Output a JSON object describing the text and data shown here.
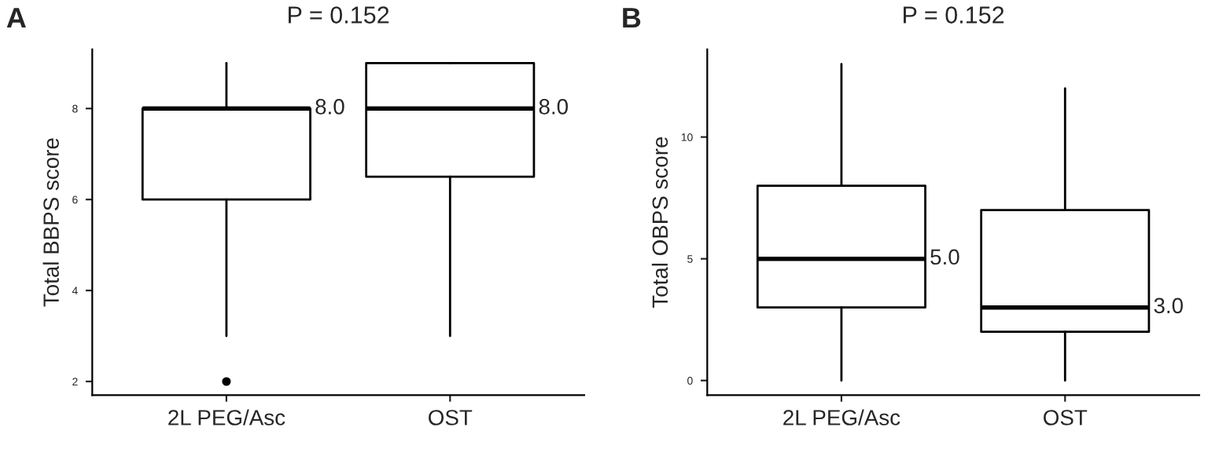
{
  "chart_data": [
    {
      "type": "box",
      "title": "P = 0.152",
      "ylabel": "Total BBPS score",
      "categories": [
        "2L PEG/Asc",
        "OST"
      ],
      "boxes": [
        {
          "low": 3,
          "q1": 6,
          "median": 8,
          "q3": 8,
          "high": 9,
          "outliers": [
            2
          ]
        },
        {
          "low": 3,
          "q1": 6.5,
          "median": 8,
          "q3": 9,
          "high": 9
        }
      ],
      "ylim": [
        1.7,
        9.3
      ],
      "yticks": [
        2,
        4,
        6,
        8
      ],
      "grid": false,
      "value_labels": [
        "8.0",
        "8.0"
      ],
      "annotations": [
        "A"
      ]
    },
    {
      "type": "box",
      "title": "P = 0.152",
      "ylabel": "Total OBPS score",
      "categories": [
        "2L PEG/Asc",
        "OST"
      ],
      "boxes": [
        {
          "low": 0,
          "q1": 3,
          "median": 5,
          "q3": 8,
          "high": 13
        },
        {
          "low": 0,
          "q1": 2,
          "median": 3,
          "q3": 7,
          "high": 12
        }
      ],
      "ylim": [
        -0.6,
        13.6
      ],
      "yticks": [
        0,
        5,
        10
      ],
      "grid": false,
      "value_labels": [
        "5.0",
        "3.0"
      ],
      "annotations": [
        "B"
      ]
    }
  ]
}
